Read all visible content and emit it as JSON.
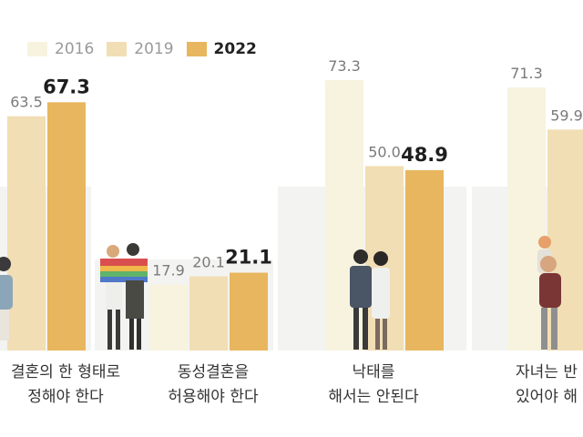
{
  "legend": [
    {
      "year": "2016",
      "color": "#f7f3df"
    },
    {
      "year": "2019",
      "color": "#f2deb4"
    },
    {
      "year": "2022",
      "color": "#e8b65e"
    }
  ],
  "chart_data": {
    "type": "bar",
    "ylim": [
      0,
      90
    ],
    "grid": false,
    "legend_position": "top-left",
    "categories": [
      {
        "label_lines": [
          "결혼의 한 형태로",
          "정해야 한다"
        ],
        "values": [
          null,
          63.5,
          67.3
        ],
        "labels": [
          "",
          "63.5",
          "67.3"
        ]
      },
      {
        "label_lines": [
          "동성결혼을",
          "허용해야 한다"
        ],
        "values": [
          17.9,
          20.1,
          21.1
        ],
        "labels": [
          "17.9",
          "20.1",
          "21.1"
        ]
      },
      {
        "label_lines": [
          "낙태를",
          "해서는 안된다"
        ],
        "values": [
          73.3,
          50.0,
          48.9
        ],
        "labels": [
          "73.3",
          "50.0",
          "48.9"
        ]
      },
      {
        "label_lines": [
          "자녀는 반",
          "있어야 해"
        ],
        "values": [
          71.3,
          59.9,
          null
        ],
        "labels": [
          "71.3",
          "59.9",
          ""
        ]
      }
    ],
    "series": [
      {
        "name": "2016"
      },
      {
        "name": "2019"
      },
      {
        "name": "2022"
      }
    ]
  }
}
